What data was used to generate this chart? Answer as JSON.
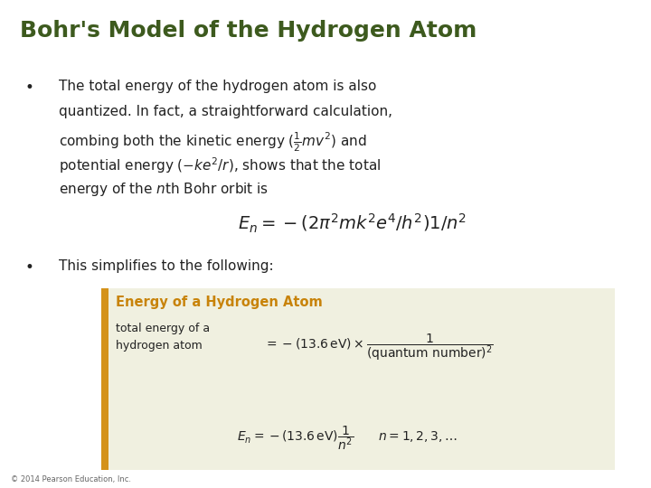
{
  "background_color": "#ffffff",
  "title": "Bohr's Model of the Hydrogen Atom",
  "title_color": "#3d5a1e",
  "title_fontsize": 18,
  "text_color": "#222222",
  "text_fontsize": 11,
  "box_title": "Energy of a Hydrogen Atom",
  "box_title_color": "#c8830a",
  "box_bg_color": "#f0f0e0",
  "box_border_color": "#d4921a",
  "footer": "© 2014 Pearson Education, Inc."
}
